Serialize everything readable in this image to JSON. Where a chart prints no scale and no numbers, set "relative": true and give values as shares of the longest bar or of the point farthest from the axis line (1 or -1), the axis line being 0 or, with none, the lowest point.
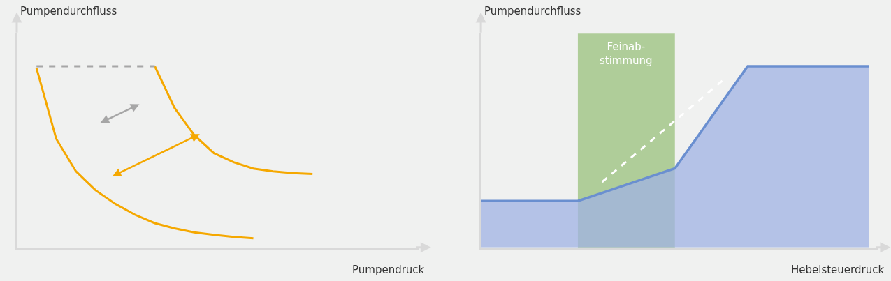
{
  "chart_data": [
    {
      "type": "line",
      "xlabel": "Pumpendruck",
      "ylabel": "Pumpendurchfluss",
      "relative": true,
      "categories": [
        null,
        null,
        null,
        null,
        null,
        null,
        null,
        null,
        null,
        null,
        null,
        null,
        null,
        null,
        null,
        null,
        null,
        null,
        null,
        null,
        null
      ],
      "series": [
        {
          "color": "#f5a800",
          "values": [
            null,
            0.99,
            0.6,
            0.42,
            0.315,
            0.24,
            0.18,
            0.134,
            0.105,
            0.083,
            0.069,
            0.058,
            0.05,
            null,
            null,
            null,
            null,
            null,
            null,
            null,
            null
          ]
        },
        {
          "color": "#f5a800",
          "values": [
            null,
            null,
            null,
            null,
            null,
            null,
            null,
            1.0,
            0.77,
            0.62,
            0.52,
            0.47,
            0.435,
            0.42,
            0.41,
            0.405,
            null,
            null,
            null,
            null,
            null
          ]
        },
        {
          "color": "#a6a6a6",
          "line_style": "dashed",
          "values": [
            null,
            1.0,
            1.0,
            1.0,
            1.0,
            1.0,
            1.0,
            1.0,
            null,
            null,
            null,
            null,
            null,
            null,
            null,
            null,
            null,
            null,
            null,
            null,
            null
          ]
        }
      ]
    },
    {
      "type": "area",
      "xlabel": "Hebelsteuerdruck",
      "ylabel": "Pumpendurchfluss",
      "relative": true,
      "categories": [
        null,
        null,
        null,
        null,
        null,
        null,
        null,
        null,
        null,
        null,
        null,
        null,
        null,
        null,
        null,
        null,
        null
      ],
      "annotations": [
        "Feinab-\nstimmung"
      ],
      "series": [
        {
          "color": "#6a8fd0",
          "values": [
            0.256,
            0.256,
            0.256,
            0.256,
            0.256,
            0.301,
            0.346,
            0.391,
            0.436,
            0.624,
            0.812,
            1.0,
            1.0,
            1.0,
            1.0,
            1.0,
            1.0
          ]
        },
        {
          "type": "line",
          "color": "#ffffff",
          "line_style": "dashed",
          "values": [
            null,
            null,
            null,
            null,
            null,
            0.361,
            0.474,
            0.586,
            0.699,
            0.812,
            0.925,
            null,
            null,
            null,
            null,
            null,
            null
          ]
        }
      ]
    }
  ]
}
